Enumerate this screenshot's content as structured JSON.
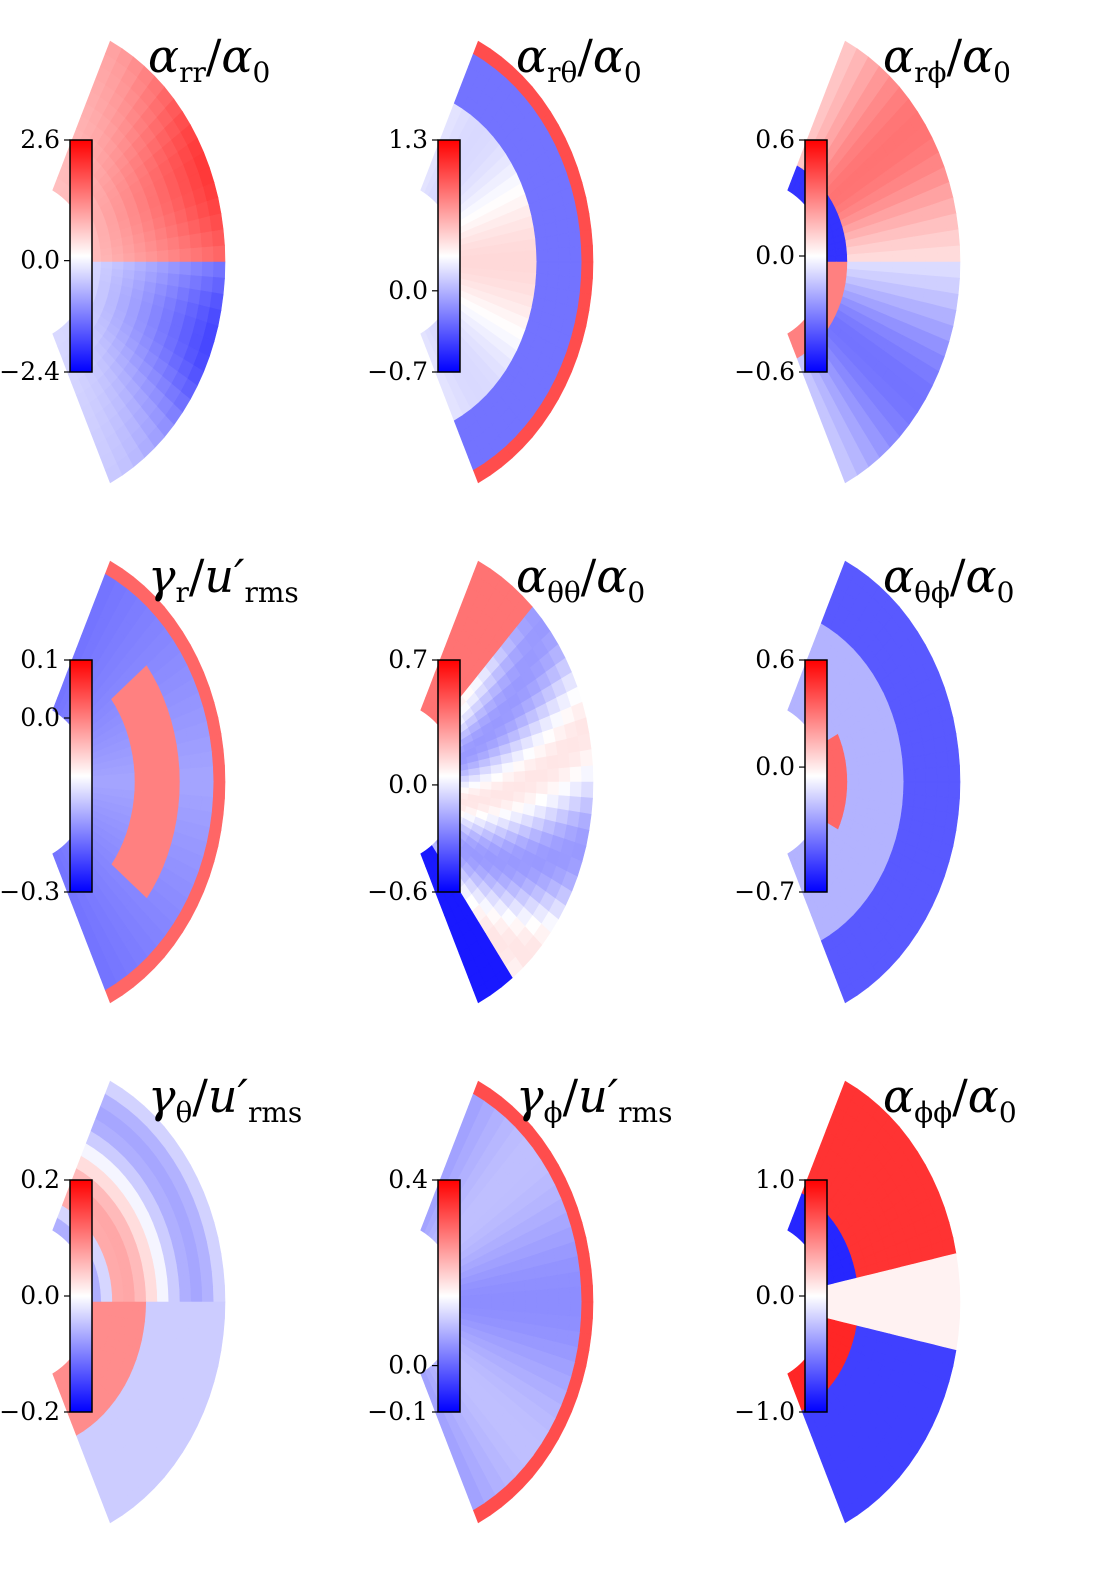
{
  "figure": {
    "panels": [
      {
        "id": "alpha_rr",
        "sym": "α",
        "sub": "rr",
        "den": "α",
        "dsub": "0",
        "cbar_max": "2.6",
        "cbar_zero": "0.0",
        "cbar_min": "−2.4",
        "min": -2.4,
        "max": 2.6
      },
      {
        "id": "alpha_rth",
        "sym": "α",
        "sub": "rθ",
        "den": "α",
        "dsub": "0",
        "cbar_max": "1.3",
        "cbar_zero": "0.0",
        "cbar_min": "−0.7",
        "min": -0.7,
        "max": 1.3
      },
      {
        "id": "alpha_rph",
        "sym": "α",
        "sub": "rϕ",
        "den": "α",
        "dsub": "0",
        "cbar_max": "0.6",
        "cbar_zero": "0.0",
        "cbar_min": "−0.6",
        "min": -0.6,
        "max": 0.6
      },
      {
        "id": "gamma_r",
        "sym": "γ",
        "sub": "r",
        "den": "u′",
        "dsub": "rms",
        "cbar_max": "0.1",
        "cbar_zero": "0.0",
        "cbar_min": "−0.3",
        "min": -0.3,
        "max": 0.1
      },
      {
        "id": "alpha_thth",
        "sym": "α",
        "sub": "θθ",
        "den": "α",
        "dsub": "0",
        "cbar_max": "0.7",
        "cbar_zero": "0.0",
        "cbar_min": "−0.6",
        "min": -0.6,
        "max": 0.7
      },
      {
        "id": "alpha_thph",
        "sym": "α",
        "sub": "θϕ",
        "den": "α",
        "dsub": "0",
        "cbar_max": "0.6",
        "cbar_zero": "0.0",
        "cbar_min": "−0.7",
        "min": -0.7,
        "max": 0.6
      },
      {
        "id": "gamma_th",
        "sym": "γ",
        "sub": "θ",
        "den": "u′",
        "dsub": "rms",
        "cbar_max": "0.2",
        "cbar_zero": "0.0",
        "cbar_min": "−0.2",
        "min": -0.2,
        "max": 0.2
      },
      {
        "id": "gamma_ph",
        "sym": "γ",
        "sub": "ϕ",
        "den": "u′",
        "dsub": "rms",
        "cbar_max": "0.4",
        "cbar_zero": "0.0",
        "cbar_min": "−0.1",
        "min": -0.1,
        "max": 0.4
      },
      {
        "id": "alpha_phph",
        "sym": "α",
        "sub": "ϕϕ",
        "den": "α",
        "dsub": "0",
        "cbar_max": "1.0",
        "cbar_zero": "0.0",
        "cbar_min": "−1.0",
        "min": -1.0,
        "max": 1.0
      }
    ]
  },
  "chart_data": {
    "type": "heatmap",
    "layout": "3x3 grid of meridional half-shell maps",
    "colormap": [
      "#0000ff",
      "#ffffff",
      "#ff0000"
    ],
    "panels": [
      {
        "quantity": "α_rr/α_0",
        "colorbar": {
          "min": -2.4,
          "zero": 0.0,
          "max": 2.6
        }
      },
      {
        "quantity": "α_rθ/α_0",
        "colorbar": {
          "min": -0.7,
          "zero": 0.0,
          "max": 1.3
        }
      },
      {
        "quantity": "α_rϕ/α_0",
        "colorbar": {
          "min": -0.6,
          "zero": 0.0,
          "max": 0.6
        }
      },
      {
        "quantity": "γ_r/u′_rms",
        "colorbar": {
          "min": -0.3,
          "zero": 0.0,
          "max": 0.1
        }
      },
      {
        "quantity": "α_θθ/α_0",
        "colorbar": {
          "min": -0.6,
          "zero": 0.0,
          "max": 0.7
        }
      },
      {
        "quantity": "α_θϕ/α_0",
        "colorbar": {
          "min": -0.7,
          "zero": 0.0,
          "max": 0.6
        }
      },
      {
        "quantity": "γ_θ/u′_rms",
        "colorbar": {
          "min": -0.2,
          "zero": 0.0,
          "max": 0.2
        }
      },
      {
        "quantity": "γ_ϕ/u′_rms",
        "colorbar": {
          "min": -0.1,
          "zero": 0.0,
          "max": 0.4
        }
      },
      {
        "quantity": "α_ϕϕ/α_0",
        "colorbar": {
          "min": -1.0,
          "zero": 0.0,
          "max": 1.0
        }
      }
    ]
  }
}
